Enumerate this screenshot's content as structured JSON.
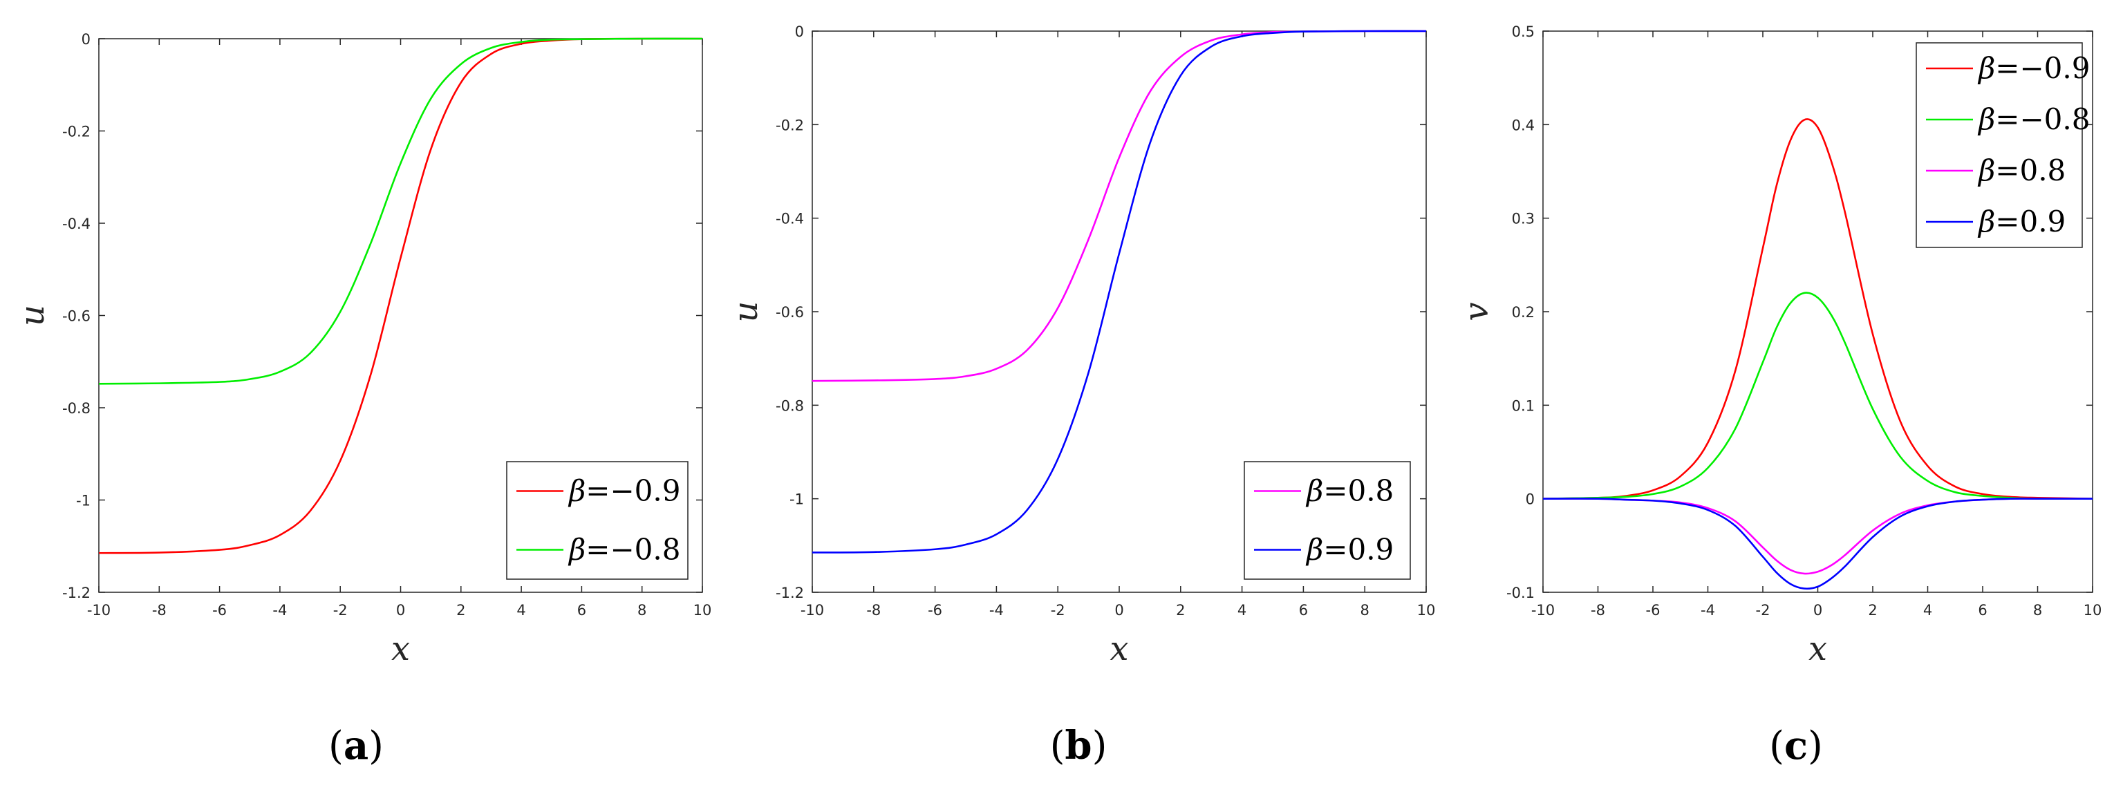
{
  "chart_data": [
    {
      "type": "line",
      "panel_label": "(a)",
      "xlabel": "x",
      "ylabel": "u",
      "xlim": [
        -10,
        10
      ],
      "ylim": [
        -1.2,
        0
      ],
      "xticks": [
        -10,
        -8,
        -6,
        -4,
        -2,
        0,
        2,
        4,
        6,
        8,
        10
      ],
      "xtick_labels": [
        "-10",
        "-8",
        "-6",
        "-4",
        "-2",
        "0",
        "2",
        "4",
        "6",
        "8",
        "10"
      ],
      "yticks": [
        -1.2,
        -1,
        -0.8,
        -0.6,
        -0.4,
        -0.2,
        0
      ],
      "ytick_labels": [
        "-1.2",
        "-1",
        "-0.8",
        "-0.6",
        "-0.4",
        "-0.2",
        "0"
      ],
      "legend_position": "bottom-right",
      "grid": false,
      "x": [
        -10,
        -8,
        -6,
        -5,
        -4,
        -3,
        -2,
        -1,
        0,
        1,
        2,
        3,
        4,
        5,
        6,
        8,
        10
      ],
      "series": [
        {
          "name": "β=−0.9",
          "color": "#ff0000",
          "values": [
            -1.115,
            -1.114,
            -1.108,
            -1.098,
            -1.076,
            -1.024,
            -0.915,
            -0.73,
            -0.475,
            -0.24,
            -0.095,
            -0.033,
            -0.011,
            -0.004,
            -0.001,
            0,
            0
          ]
        },
        {
          "name": "β=−0.8",
          "color": "#00ee00",
          "values": [
            -0.748,
            -0.747,
            -0.744,
            -0.738,
            -0.722,
            -0.682,
            -0.592,
            -0.445,
            -0.27,
            -0.13,
            -0.055,
            -0.02,
            -0.007,
            -0.002,
            -0.001,
            0,
            0
          ]
        }
      ]
    },
    {
      "type": "line",
      "panel_label": "(b)",
      "xlabel": "x",
      "ylabel": "u",
      "xlim": [
        -10,
        10
      ],
      "ylim": [
        -1.2,
        0
      ],
      "xticks": [
        -10,
        -8,
        -6,
        -4,
        -2,
        0,
        2,
        4,
        6,
        8,
        10
      ],
      "xtick_labels": [
        "-10",
        "-8",
        "-6",
        "-4",
        "-2",
        "0",
        "2",
        "4",
        "6",
        "8",
        "10"
      ],
      "yticks": [
        -1.2,
        -1,
        -0.8,
        -0.6,
        -0.4,
        -0.2,
        0
      ],
      "ytick_labels": [
        "-1.2",
        "-1",
        "-0.8",
        "-0.6",
        "-0.4",
        "-0.2",
        "0"
      ],
      "legend_position": "bottom-right",
      "grid": false,
      "x": [
        -10,
        -8,
        -6,
        -5,
        -4,
        -3,
        -2,
        -1,
        0,
        1,
        2,
        3,
        4,
        5,
        6,
        8,
        10
      ],
      "series": [
        {
          "name": "β=0.8",
          "color": "#ff00ff",
          "values": [
            -0.748,
            -0.747,
            -0.744,
            -0.738,
            -0.722,
            -0.682,
            -0.592,
            -0.445,
            -0.27,
            -0.13,
            -0.055,
            -0.02,
            -0.007,
            -0.002,
            -0.001,
            0,
            0
          ]
        },
        {
          "name": "β=0.9",
          "color": "#0000ff",
          "values": [
            -1.115,
            -1.114,
            -1.108,
            -1.098,
            -1.076,
            -1.024,
            -0.915,
            -0.73,
            -0.475,
            -0.24,
            -0.095,
            -0.033,
            -0.011,
            -0.004,
            -0.001,
            0,
            0
          ]
        }
      ]
    },
    {
      "type": "line",
      "panel_label": "(c)",
      "xlabel": "x",
      "ylabel": "v",
      "xlim": [
        -10,
        10
      ],
      "ylim": [
        -0.1,
        0.5
      ],
      "xticks": [
        -10,
        -8,
        -6,
        -4,
        -2,
        0,
        2,
        4,
        6,
        8,
        10
      ],
      "xtick_labels": [
        "-10",
        "-8",
        "-6",
        "-4",
        "-2",
        "0",
        "2",
        "4",
        "6",
        "8",
        "10"
      ],
      "yticks": [
        -0.1,
        0,
        0.1,
        0.2,
        0.3,
        0.4,
        0.5
      ],
      "ytick_labels": [
        "-0.1",
        "0",
        "0.1",
        "0.2",
        "0.3",
        "0.4",
        "0.5"
      ],
      "legend_position": "top-right",
      "grid": false,
      "x": [
        -10,
        -8,
        -7,
        -6,
        -5,
        -4,
        -3,
        -2,
        -1.5,
        -1,
        -0.5,
        0,
        0.5,
        1,
        2,
        3,
        4,
        5,
        6,
        7,
        8,
        10
      ],
      "series": [
        {
          "name": "β=−0.9",
          "color": "#ff0000",
          "values": [
            0,
            0.001,
            0.003,
            0.009,
            0.024,
            0.06,
            0.137,
            0.268,
            0.335,
            0.383,
            0.405,
            0.397,
            0.36,
            0.305,
            0.176,
            0.083,
            0.035,
            0.013,
            0.005,
            0.002,
            0.001,
            0
          ]
        },
        {
          "name": "β=−0.8",
          "color": "#00ee00",
          "values": [
            0,
            0.001,
            0.002,
            0.005,
            0.013,
            0.033,
            0.075,
            0.146,
            0.183,
            0.209,
            0.22,
            0.215,
            0.196,
            0.166,
            0.096,
            0.045,
            0.019,
            0.007,
            0.003,
            0.001,
            0,
            0
          ]
        },
        {
          "name": "β=0.8",
          "color": "#ff00ff",
          "values": [
            0,
            0,
            -0.001,
            -0.002,
            -0.004,
            -0.01,
            -0.024,
            -0.052,
            -0.066,
            -0.076,
            -0.08,
            -0.078,
            -0.071,
            -0.06,
            -0.034,
            -0.016,
            -0.007,
            -0.003,
            -0.001,
            0,
            0,
            0
          ]
        },
        {
          "name": "β=0.9",
          "color": "#0000ff",
          "values": [
            0,
            0,
            -0.001,
            -0.002,
            -0.005,
            -0.012,
            -0.029,
            -0.062,
            -0.079,
            -0.091,
            -0.096,
            -0.094,
            -0.085,
            -0.072,
            -0.041,
            -0.019,
            -0.008,
            -0.003,
            -0.001,
            0,
            0,
            0
          ]
        }
      ]
    }
  ]
}
